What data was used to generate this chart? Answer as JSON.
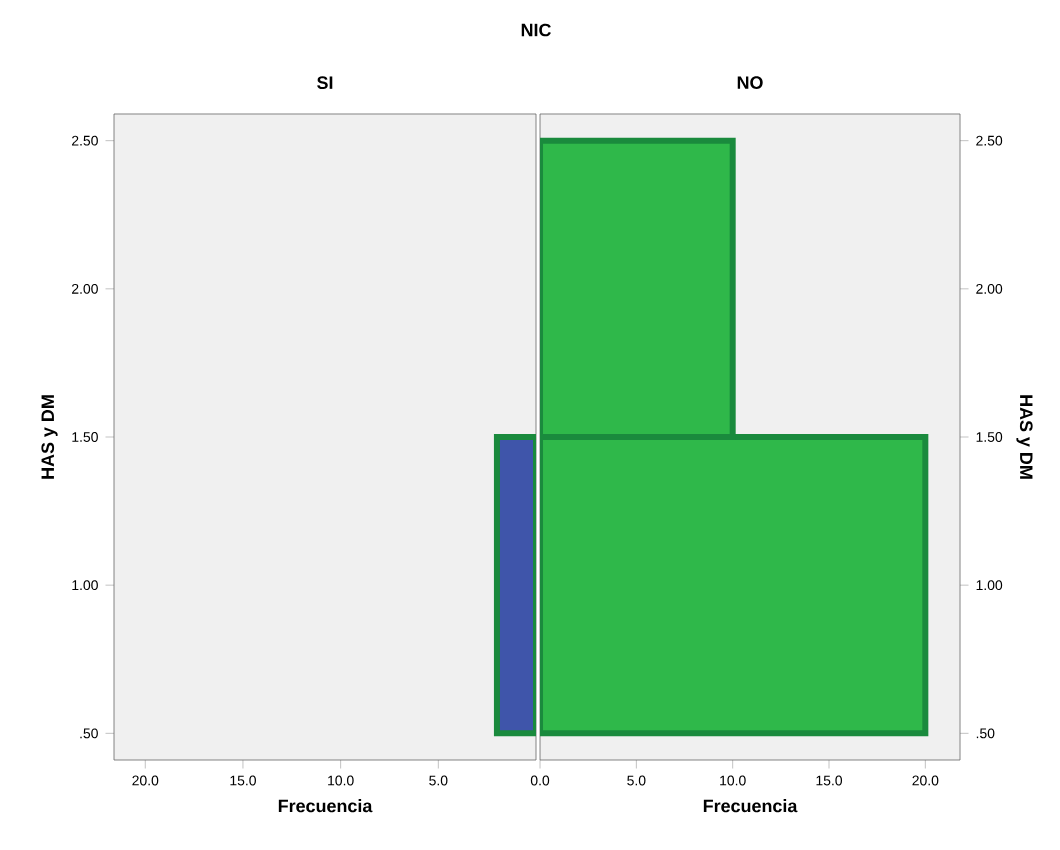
{
  "chart_data": [
    {
      "type": "histogram",
      "orientation": "horizontal",
      "title": "NIC",
      "subtitle": "SI",
      "xlabel": "Frecuencia",
      "ylabel": "HAS y DM",
      "bins": [
        0.5,
        1.5,
        2.5
      ],
      "series": [
        {
          "color": "#3f55aa",
          "values": [
            2,
            0
          ]
        }
      ],
      "xlim": [
        21.6,
        0
      ],
      "xticks": [
        {
          "value": 20,
          "label": "20.0"
        },
        {
          "value": 15,
          "label": "15.0"
        },
        {
          "value": 10,
          "label": "10.0"
        },
        {
          "value": 5,
          "label": "5.0"
        }
      ],
      "ylim": [
        0.41,
        2.59
      ],
      "yticks": [
        {
          "value": 0.5,
          "label": ".50"
        },
        {
          "value": 1,
          "label": "1.00"
        },
        {
          "value": 1.5,
          "label": "1.50"
        },
        {
          "value": 2,
          "label": "2.00"
        },
        {
          "value": 2.5,
          "label": "2.50"
        }
      ]
    },
    {
      "type": "histogram",
      "orientation": "horizontal",
      "subtitle": "NO",
      "xlabel": "Frecuencia",
      "y2label": "HAS y DM",
      "bins": [
        0.5,
        1.5,
        2.5
      ],
      "series": [
        {
          "color": "#2fb84a",
          "values": [
            20,
            10
          ],
          "axis": "y2"
        }
      ],
      "xlim": [
        0,
        21.8
      ],
      "xticks": [
        {
          "value": 0,
          "label": "0.0"
        },
        {
          "value": 5,
          "label": "5.0"
        },
        {
          "value": 10,
          "label": "10.0"
        },
        {
          "value": 15,
          "label": "15.0"
        },
        {
          "value": 20,
          "label": "20.0"
        }
      ],
      "ylim": [
        0.41,
        2.59
      ],
      "y2lim": [
        0.41,
        2.59
      ],
      "y2ticks": [
        {
          "value": 0.5,
          "label": ".50"
        },
        {
          "value": 1,
          "label": "1.00"
        },
        {
          "value": 1.5,
          "label": "1.50"
        },
        {
          "value": 2,
          "label": "2.00"
        },
        {
          "value": 2.5,
          "label": "2.50"
        }
      ]
    }
  ]
}
